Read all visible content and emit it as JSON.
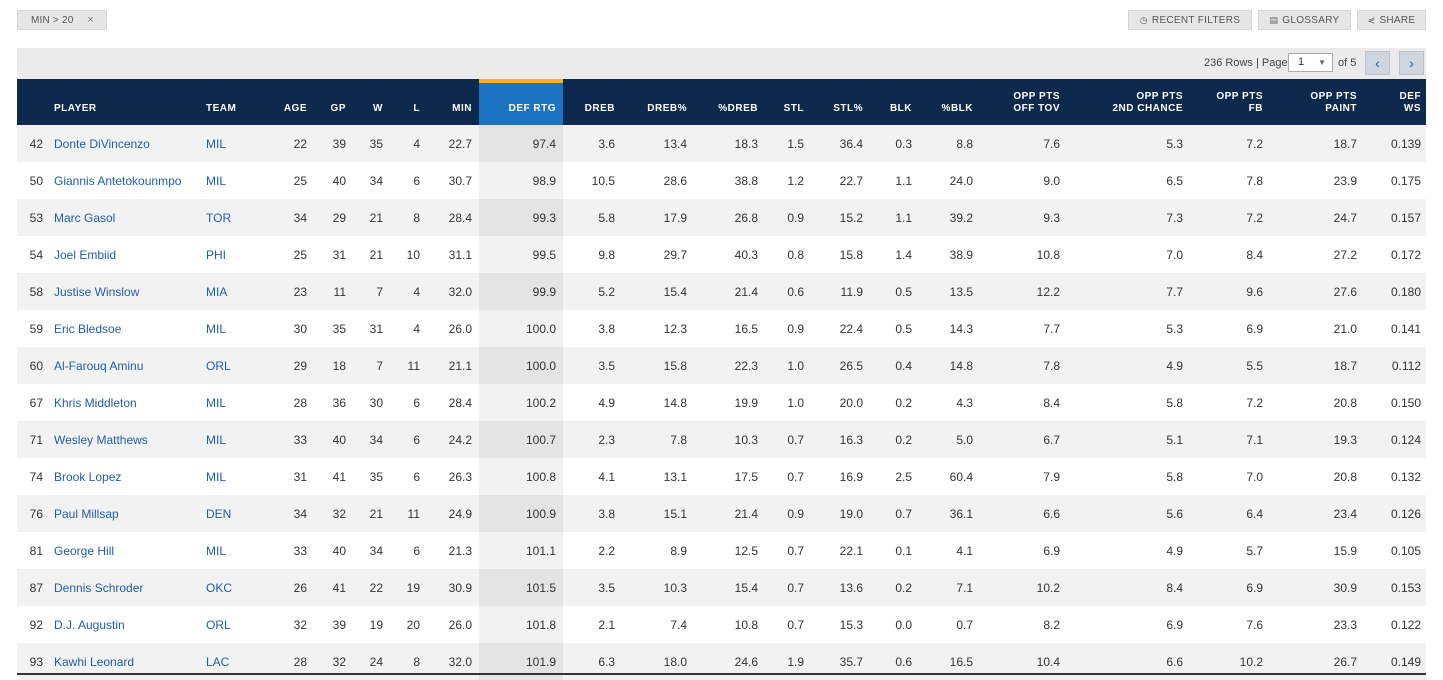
{
  "filter_chip": {
    "label": "MIN > 20",
    "remove": "×"
  },
  "toolbar": {
    "recent_filters": "RECENT FILTERS",
    "glossary": "GLOSSARY",
    "share": "SHARE"
  },
  "pager": {
    "rows_text": "236 Rows | Page",
    "page": "1",
    "of_text": "of 5",
    "prev": "‹",
    "next": "›"
  },
  "columns": [
    {
      "key": "rank",
      "label": ""
    },
    {
      "key": "player",
      "label": "PLAYER"
    },
    {
      "key": "team",
      "label": "TEAM"
    },
    {
      "key": "age",
      "label": "AGE"
    },
    {
      "key": "gp",
      "label": "GP"
    },
    {
      "key": "w",
      "label": "W"
    },
    {
      "key": "l",
      "label": "L"
    },
    {
      "key": "min",
      "label": "MIN"
    },
    {
      "key": "def_rtg",
      "label": "DEF RTG"
    },
    {
      "key": "dreb",
      "label": "DREB"
    },
    {
      "key": "dreb_pct",
      "label": "DREB%"
    },
    {
      "key": "pct_dreb",
      "label": "%DREB"
    },
    {
      "key": "stl",
      "label": "STL"
    },
    {
      "key": "stl_pct",
      "label": "STL%"
    },
    {
      "key": "blk",
      "label": "BLK"
    },
    {
      "key": "pct_blk",
      "label": "%BLK"
    },
    {
      "key": "opp_pts_off_tov",
      "label": "OPP PTS\nOFF TOV"
    },
    {
      "key": "opp_pts_2nd",
      "label": "OPP PTS\n2ND CHANCE"
    },
    {
      "key": "opp_pts_fb",
      "label": "OPP PTS\nFB"
    },
    {
      "key": "opp_pts_paint",
      "label": "OPP PTS\nPAINT"
    },
    {
      "key": "def_ws",
      "label": "DEF\nWS"
    }
  ],
  "rows": [
    [
      "42",
      "Donte DiVincenzo",
      "MIL",
      "22",
      "39",
      "35",
      "4",
      "22.7",
      "97.4",
      "3.6",
      "13.4",
      "18.3",
      "1.5",
      "36.4",
      "0.3",
      "8.8",
      "7.6",
      "5.3",
      "7.2",
      "18.7",
      "0.139"
    ],
    [
      "50",
      "Giannis Antetokounmpo",
      "MIL",
      "25",
      "40",
      "34",
      "6",
      "30.7",
      "98.9",
      "10.5",
      "28.6",
      "38.8",
      "1.2",
      "22.7",
      "1.1",
      "24.0",
      "9.0",
      "6.5",
      "7.8",
      "23.9",
      "0.175"
    ],
    [
      "53",
      "Marc Gasol",
      "TOR",
      "34",
      "29",
      "21",
      "8",
      "28.4",
      "99.3",
      "5.8",
      "17.9",
      "26.8",
      "0.9",
      "15.2",
      "1.1",
      "39.2",
      "9.3",
      "7.3",
      "7.2",
      "24.7",
      "0.157"
    ],
    [
      "54",
      "Joel Embiid",
      "PHI",
      "25",
      "31",
      "21",
      "10",
      "31.1",
      "99.5",
      "9.8",
      "29.7",
      "40.3",
      "0.8",
      "15.8",
      "1.4",
      "38.9",
      "10.8",
      "7.0",
      "8.4",
      "27.2",
      "0.172"
    ],
    [
      "58",
      "Justise Winslow",
      "MIA",
      "23",
      "11",
      "7",
      "4",
      "32.0",
      "99.9",
      "5.2",
      "15.4",
      "21.4",
      "0.6",
      "11.9",
      "0.5",
      "13.5",
      "12.2",
      "7.7",
      "9.6",
      "27.6",
      "0.180"
    ],
    [
      "59",
      "Eric Bledsoe",
      "MIL",
      "30",
      "35",
      "31",
      "4",
      "26.0",
      "100.0",
      "3.8",
      "12.3",
      "16.5",
      "0.9",
      "22.4",
      "0.5",
      "14.3",
      "7.7",
      "5.3",
      "6.9",
      "21.0",
      "0.141"
    ],
    [
      "60",
      "Al-Farouq Aminu",
      "ORL",
      "29",
      "18",
      "7",
      "11",
      "21.1",
      "100.0",
      "3.5",
      "15.8",
      "22.3",
      "1.0",
      "26.5",
      "0.4",
      "14.8",
      "7.8",
      "4.9",
      "5.5",
      "18.7",
      "0.112"
    ],
    [
      "67",
      "Khris Middleton",
      "MIL",
      "28",
      "36",
      "30",
      "6",
      "28.4",
      "100.2",
      "4.9",
      "14.8",
      "19.9",
      "1.0",
      "20.0",
      "0.2",
      "4.3",
      "8.4",
      "5.8",
      "7.2",
      "20.8",
      "0.150"
    ],
    [
      "71",
      "Wesley Matthews",
      "MIL",
      "33",
      "40",
      "34",
      "6",
      "24.2",
      "100.7",
      "2.3",
      "7.8",
      "10.3",
      "0.7",
      "16.3",
      "0.2",
      "5.0",
      "6.7",
      "5.1",
      "7.1",
      "19.3",
      "0.124"
    ],
    [
      "74",
      "Brook Lopez",
      "MIL",
      "31",
      "41",
      "35",
      "6",
      "26.3",
      "100.8",
      "4.1",
      "13.1",
      "17.5",
      "0.7",
      "16.9",
      "2.5",
      "60.4",
      "7.9",
      "5.8",
      "7.0",
      "20.8",
      "0.132"
    ],
    [
      "76",
      "Paul Millsap",
      "DEN",
      "34",
      "32",
      "21",
      "11",
      "24.9",
      "100.9",
      "3.8",
      "15.1",
      "21.4",
      "0.9",
      "19.0",
      "0.7",
      "36.1",
      "6.6",
      "5.6",
      "6.4",
      "23.4",
      "0.126"
    ],
    [
      "81",
      "George Hill",
      "MIL",
      "33",
      "40",
      "34",
      "6",
      "21.3",
      "101.1",
      "2.2",
      "8.9",
      "12.5",
      "0.7",
      "22.1",
      "0.1",
      "4.1",
      "6.9",
      "4.9",
      "5.7",
      "15.9",
      "0.105"
    ],
    [
      "87",
      "Dennis Schroder",
      "OKC",
      "26",
      "41",
      "22",
      "19",
      "30.9",
      "101.5",
      "3.5",
      "10.3",
      "15.4",
      "0.7",
      "13.6",
      "0.2",
      "7.1",
      "10.2",
      "8.4",
      "6.9",
      "30.9",
      "0.153"
    ],
    [
      "92",
      "D.J. Augustin",
      "ORL",
      "32",
      "39",
      "19",
      "20",
      "26.0",
      "101.8",
      "2.1",
      "7.4",
      "10.8",
      "0.7",
      "15.3",
      "0.0",
      "0.7",
      "8.2",
      "6.9",
      "7.6",
      "23.3",
      "0.122"
    ],
    [
      "93",
      "Kawhi Leonard",
      "LAC",
      "28",
      "32",
      "24",
      "8",
      "32.0",
      "101.9",
      "6.3",
      "18.0",
      "24.6",
      "1.9",
      "35.7",
      "0.6",
      "16.5",
      "10.4",
      "6.6",
      "10.2",
      "26.7",
      "0.149"
    ]
  ],
  "colors": {
    "header_bg": "#0d2a4e",
    "sorted_header_bg": "#1c74c0",
    "sorted_accent": "#f3b51a",
    "link": "#1f5ea8"
  },
  "icons": {
    "recent_filters": "clock-icon",
    "glossary": "book-icon",
    "share": "share-icon"
  }
}
